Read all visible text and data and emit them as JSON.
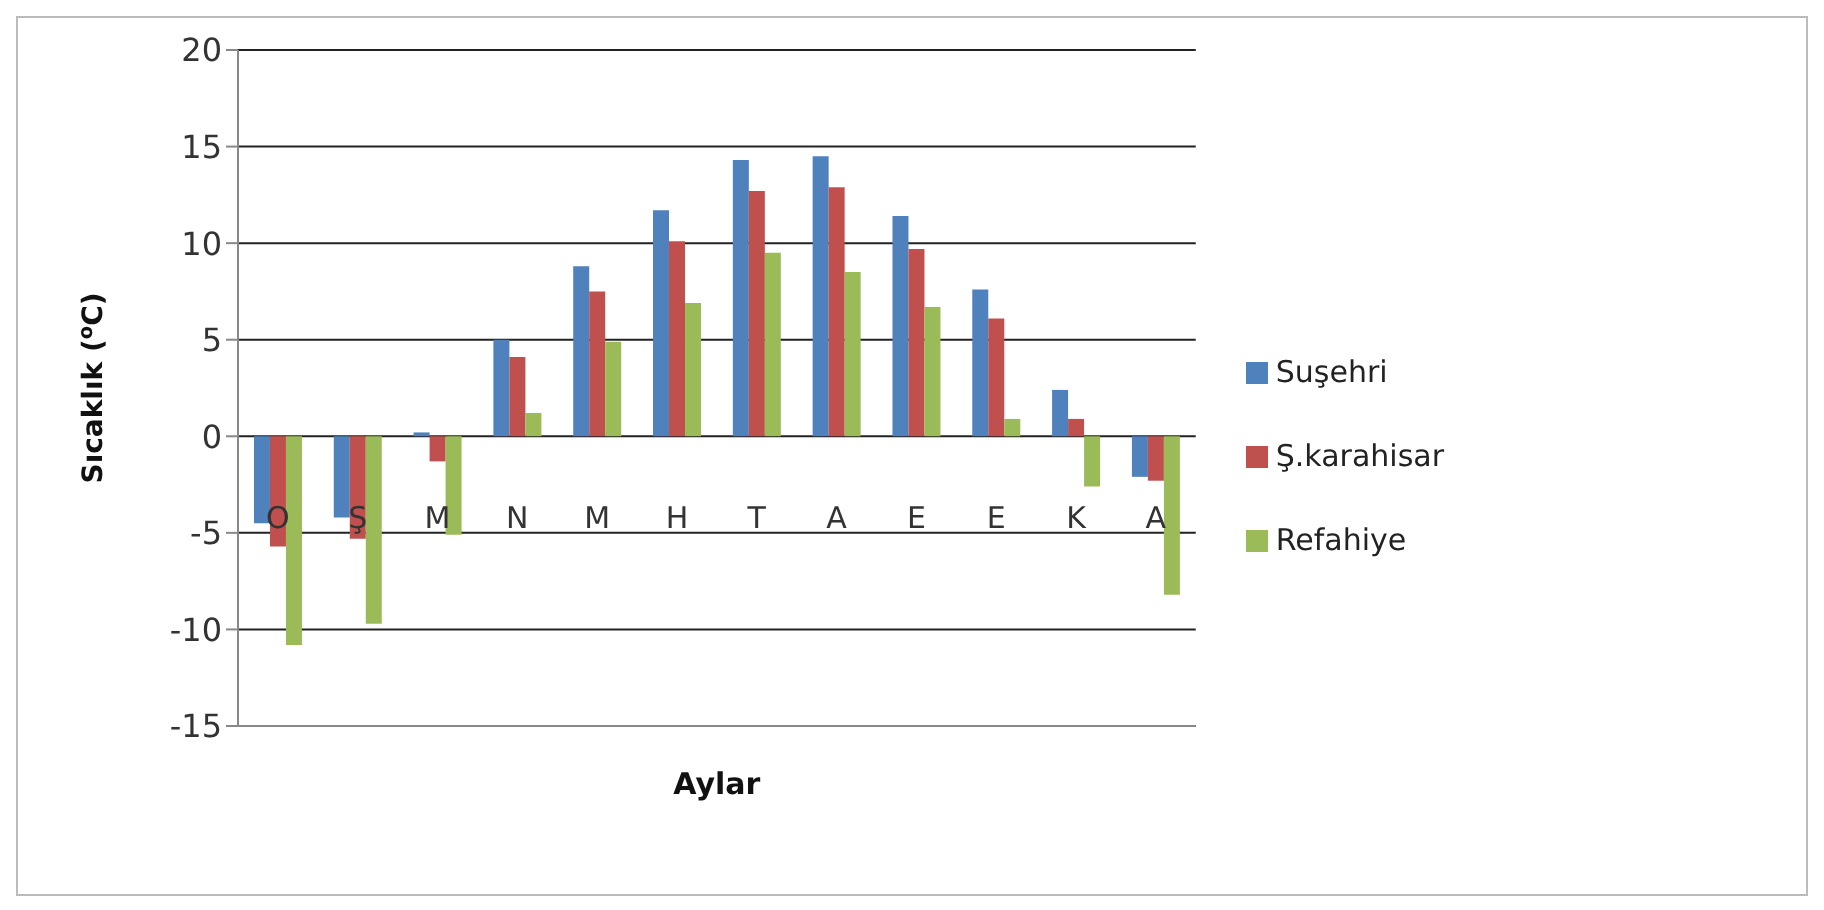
{
  "chart_data": {
    "type": "bar",
    "xlabel": "Aylar",
    "ylabel": "Sıcaklık ($^{o}$C)",
    "categories": [
      "O",
      "Ş",
      "M",
      "N",
      "M",
      "H",
      "T",
      "A",
      "E",
      "E",
      "K",
      "A"
    ],
    "series": [
      {
        "name": "Suşehri",
        "color": "#4f81bd",
        "values": [
          -4.5,
          -4.2,
          0.2,
          5.0,
          8.8,
          11.7,
          14.3,
          14.5,
          11.4,
          7.6,
          2.4,
          -2.1
        ]
      },
      {
        "name": "Ş.karahisar",
        "color": "#c0504d",
        "values": [
          -5.7,
          -5.3,
          -1.3,
          4.1,
          7.5,
          10.1,
          12.7,
          12.9,
          9.7,
          6.1,
          0.9,
          -2.3
        ]
      },
      {
        "name": "Refahiye",
        "color": "#9bbb59",
        "values": [
          -10.8,
          -9.7,
          -5.1,
          1.2,
          4.9,
          6.9,
          9.5,
          8.5,
          6.7,
          0.9,
          -2.6,
          -8.2
        ]
      }
    ],
    "ylim": [
      -15,
      20
    ],
    "yticks": [
      -15,
      -10,
      -5,
      0,
      5,
      10,
      15,
      20
    ],
    "grid": "y",
    "legend": "right"
  }
}
